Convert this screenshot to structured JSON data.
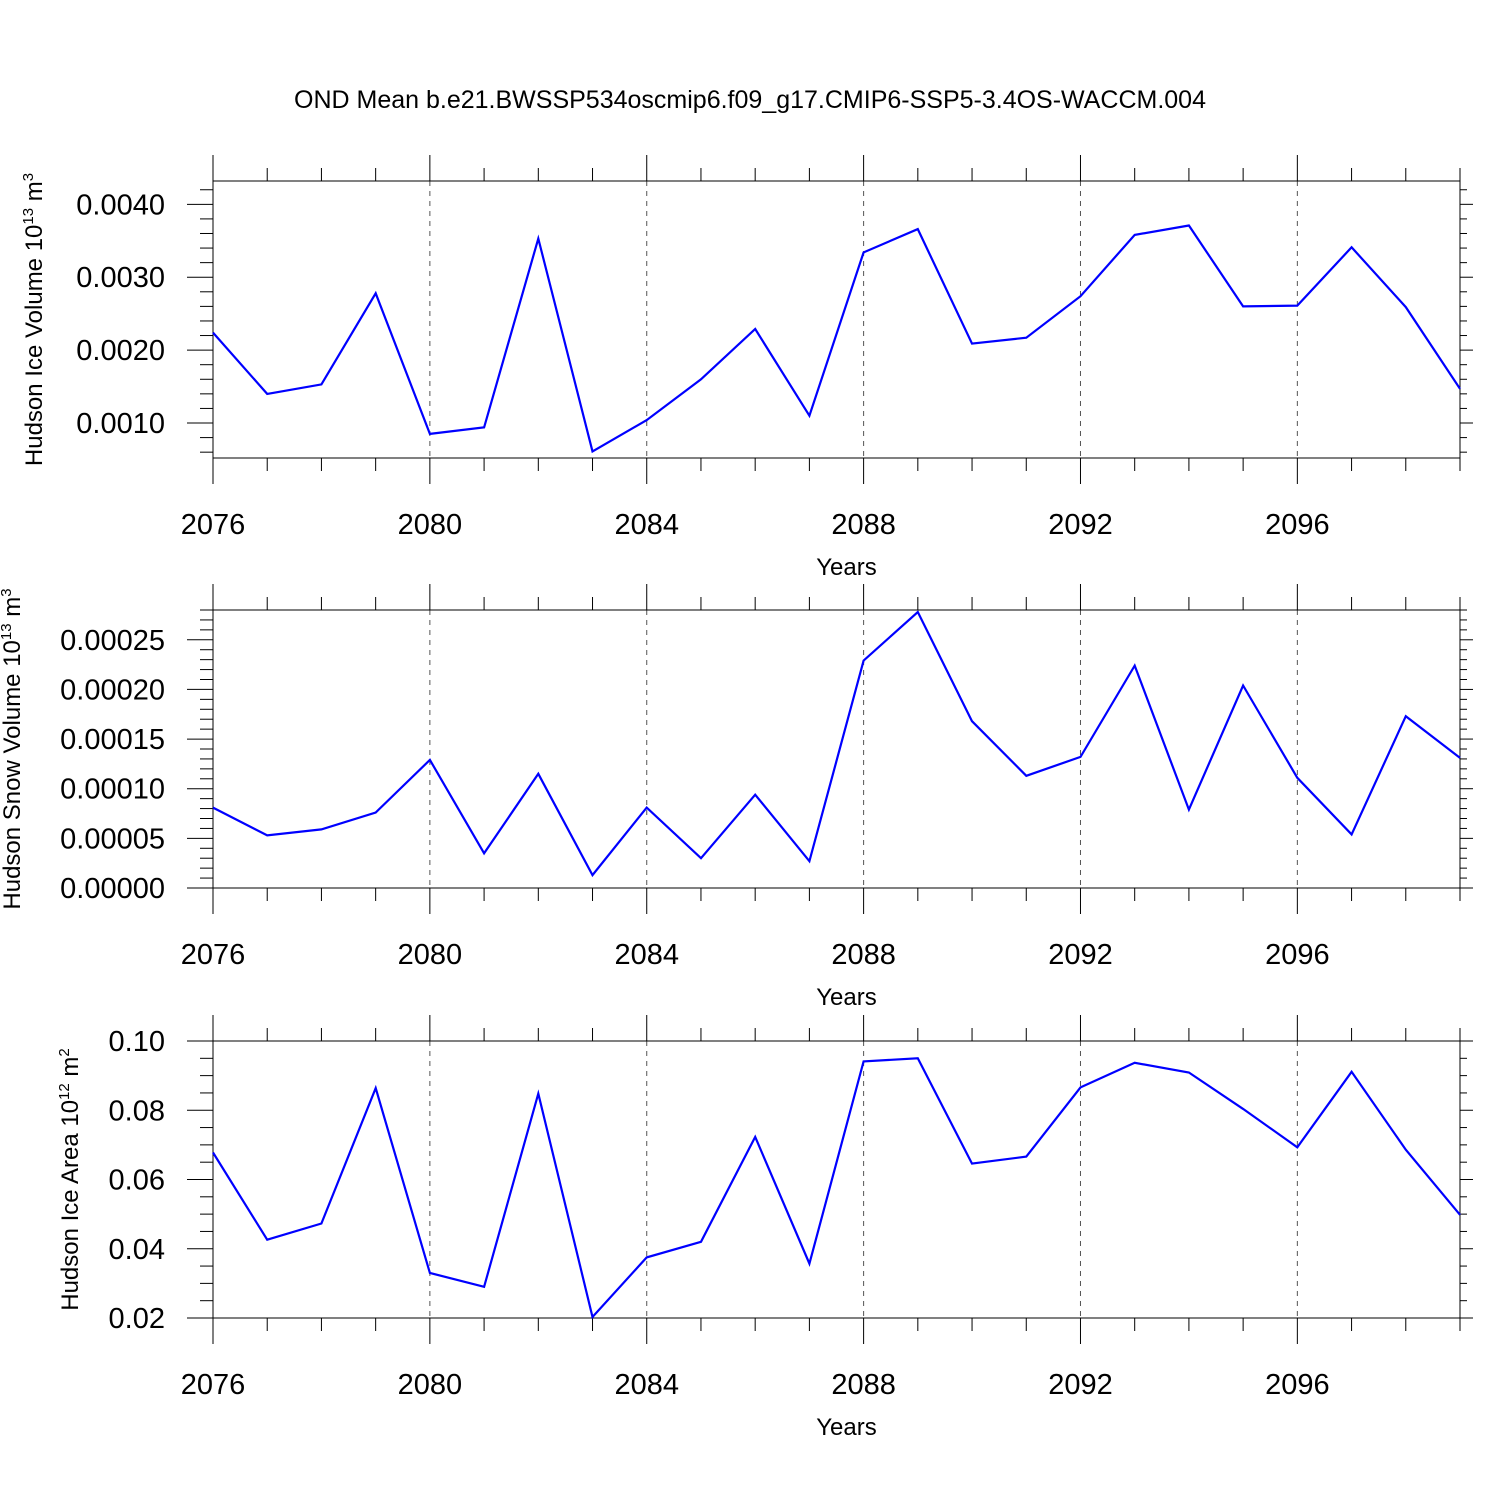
{
  "title": "OND Mean b.e21.BWSSP534oscmip6.f09_g17.CMIP6-SSP5-3.4OS-WACCM.004",
  "colors": {
    "line": "#0000ff",
    "axis": "#000000",
    "grid": "#555555"
  },
  "chart_data": [
    {
      "type": "line",
      "ylabel": "Hudson Ice Volume 10",
      "ylabel_exp": "13",
      "ylabel_unit": " m",
      "ylabel_unit_exp": "3",
      "xlabel": "Years",
      "xlim": [
        2076,
        2099
      ],
      "ylim": [
        0.00052,
        0.00432
      ],
      "yticks": [
        0.001,
        0.002,
        0.003,
        0.004
      ],
      "ytick_labels": [
        "0.0010",
        "0.0020",
        "0.0030",
        "0.0040"
      ],
      "yminor_step": 0.0002,
      "xticks": [
        2076,
        2080,
        2084,
        2088,
        2092,
        2096
      ],
      "xtick_labels": [
        "2076",
        "2080",
        "2084",
        "2088",
        "2092",
        "2096"
      ],
      "grid_x": [
        2080,
        2084,
        2088,
        2092,
        2096
      ],
      "x": [
        2076,
        2077,
        2078,
        2079,
        2080,
        2081,
        2082,
        2083,
        2084,
        2085,
        2086,
        2087,
        2088,
        2089,
        2090,
        2091,
        2092,
        2093,
        2094,
        2095,
        2096,
        2097,
        2098,
        2099
      ],
      "values": [
        0.00224,
        0.0014,
        0.00153,
        0.00278,
        0.00085,
        0.00094,
        0.00353,
        0.00061,
        0.00104,
        0.0016,
        0.00229,
        0.0011,
        0.00334,
        0.00366,
        0.00209,
        0.00217,
        0.00274,
        0.00358,
        0.00371,
        0.0026,
        0.00261,
        0.00341,
        0.00259,
        0.00147
      ]
    },
    {
      "type": "line",
      "ylabel": "Hudson Snow Volume 10",
      "ylabel_exp": "13",
      "ylabel_unit": " m",
      "ylabel_unit_exp": "3",
      "xlabel": "Years",
      "xlim": [
        2076,
        2099
      ],
      "ylim": [
        0.0,
        0.00028
      ],
      "yticks": [
        0.0,
        5e-05,
        0.0001,
        0.00015,
        0.0002,
        0.00025
      ],
      "ytick_labels": [
        "0.00000",
        "0.00005",
        "0.00010",
        "0.00015",
        "0.00020",
        "0.00025"
      ],
      "yminor_step": 1e-05,
      "xticks": [
        2076,
        2080,
        2084,
        2088,
        2092,
        2096
      ],
      "xtick_labels": [
        "2076",
        "2080",
        "2084",
        "2088",
        "2092",
        "2096"
      ],
      "grid_x": [
        2080,
        2084,
        2088,
        2092,
        2096
      ],
      "x": [
        2076,
        2077,
        2078,
        2079,
        2080,
        2081,
        2082,
        2083,
        2084,
        2085,
        2086,
        2087,
        2088,
        2089,
        2090,
        2091,
        2092,
        2093,
        2094,
        2095,
        2096,
        2097,
        2098,
        2099
      ],
      "values": [
        8.1e-05,
        5.3e-05,
        5.9e-05,
        7.6e-05,
        0.000129,
        3.5e-05,
        0.000115,
        1.3e-05,
        8.1e-05,
        3e-05,
        9.4e-05,
        2.7e-05,
        0.000229,
        0.000278,
        0.000168,
        0.000113,
        0.000132,
        0.000224,
        7.9e-05,
        0.000204,
        0.000111,
        5.4e-05,
        0.000173,
        0.000131
      ]
    },
    {
      "type": "line",
      "ylabel": "Hudson Ice Area 10",
      "ylabel_exp": "12",
      "ylabel_unit": " m",
      "ylabel_unit_exp": "2",
      "xlabel": "Years",
      "xlim": [
        2076,
        2099
      ],
      "ylim": [
        0.02,
        0.1
      ],
      "yticks": [
        0.02,
        0.04,
        0.06,
        0.08,
        0.1
      ],
      "ytick_labels": [
        "0.02",
        "0.04",
        "0.06",
        "0.08",
        "0.10"
      ],
      "yminor_step": 0.005,
      "xticks": [
        2076,
        2080,
        2084,
        2088,
        2092,
        2096
      ],
      "xtick_labels": [
        "2076",
        "2080",
        "2084",
        "2088",
        "2092",
        "2096"
      ],
      "grid_x": [
        2080,
        2084,
        2088,
        2092,
        2096
      ],
      "x": [
        2076,
        2077,
        2078,
        2079,
        2080,
        2081,
        2082,
        2083,
        2084,
        2085,
        2086,
        2087,
        2088,
        2089,
        2090,
        2091,
        2092,
        2093,
        2094,
        2095,
        2096,
        2097,
        2098,
        2099
      ],
      "values": [
        0.0678,
        0.0426,
        0.0473,
        0.0864,
        0.033,
        0.029,
        0.0848,
        0.0203,
        0.0375,
        0.042,
        0.0723,
        0.0357,
        0.0941,
        0.095,
        0.0646,
        0.0666,
        0.0866,
        0.0937,
        0.0909,
        0.0804,
        0.0693,
        0.0911,
        0.0686,
        0.0498
      ]
    }
  ]
}
